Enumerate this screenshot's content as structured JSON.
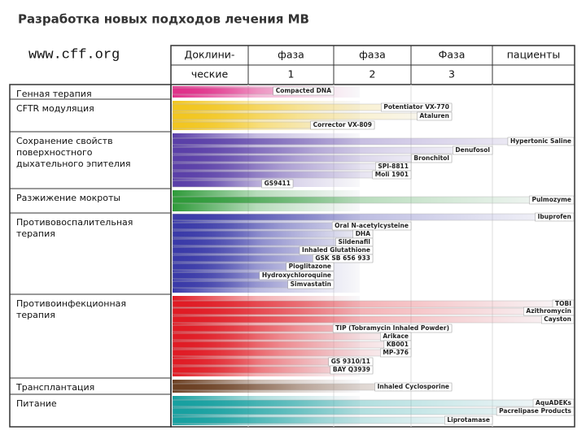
{
  "title": "Разработка новых подходов лечения МВ",
  "url": "www.cff.org",
  "header": {
    "row1": [
      "Доклини-",
      "фаза",
      "фаза",
      "Фаза",
      "пациенты"
    ],
    "row2": [
      "ческие",
      "1",
      "2",
      "3"
    ]
  },
  "groups": [
    {
      "label": [
        "Генная терапия"
      ],
      "drugs": [
        "Compacted DNA"
      ]
    },
    {
      "label": [
        "CFTR модуляция"
      ],
      "drugs": [
        "Potentiator  VX-770",
        "Ataluren",
        "Corrector  VX-809"
      ]
    },
    {
      "label": [
        "Сохранение свойств",
        "поверхностного",
        "дыхательного эпителия"
      ],
      "drugs": [
        "Hypertonic Saline",
        "Denufosol",
        "Bronchitol",
        "SPI-8811",
        "Moli 1901",
        "GS9411"
      ]
    },
    {
      "label": [
        "Разжижение мокроты"
      ],
      "drugs": [
        "Pulmozyme"
      ]
    },
    {
      "label": [
        "Противовоспалительная",
        "терапия"
      ],
      "drugs": [
        "Ibuprofen",
        "Oral N-acetylcysteine",
        "DHA",
        "Sildenafil",
        "Inhaled Glutathione",
        "GSK SB 656 933",
        "Pioglitazone",
        "Hydroxychloroquine",
        "Simvastatin"
      ]
    },
    {
      "label": [
        "Противоинфекционная",
        "терапия"
      ],
      "drugs": [
        "TOBI",
        "Azithromycin",
        "Cayston",
        "TIP (Tobramycin Inhaled Powder)",
        "Arikace",
        "KB001",
        "MP-376",
        "GS 9310/11",
        "BAY Q3939"
      ]
    },
    {
      "label": [
        "Трансплантация"
      ],
      "drugs": [
        "Inhaled Cyclosporine"
      ]
    },
    {
      "label": [
        "Питание"
      ],
      "drugs": [
        "AquADEKs",
        "Pacrelipase Products",
        "Liprotamase"
      ]
    }
  ]
}
